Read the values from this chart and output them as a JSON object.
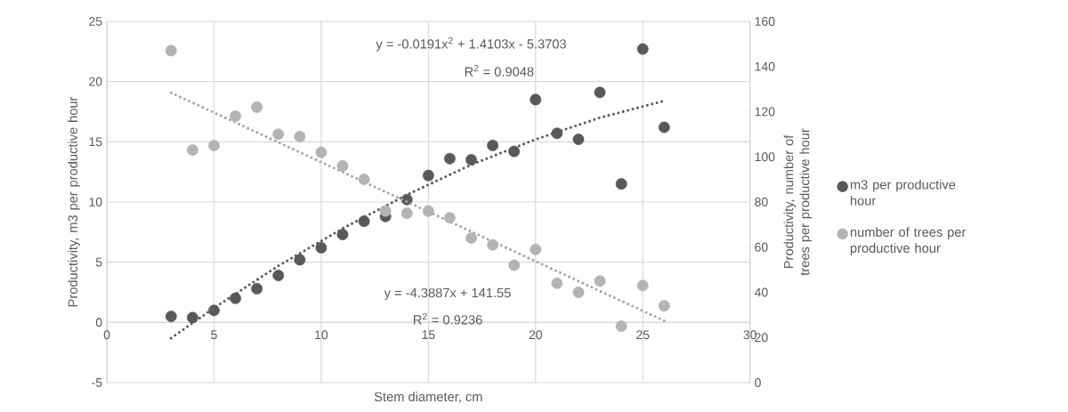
{
  "chart_data": {
    "type": "scatter",
    "xlabel": "Stem diameter, cm",
    "ylabel": "Productivity, m3 per productive hour",
    "y2label": "Productivity, number of trees per productive hour",
    "xlim": [
      0,
      30
    ],
    "xticks": [
      0,
      5,
      10,
      15,
      20,
      25,
      30
    ],
    "ylim": [
      -5,
      25
    ],
    "yticks": [
      -5,
      0,
      5,
      10,
      15,
      20,
      25
    ],
    "y2lim": [
      0,
      160
    ],
    "y2ticks": [
      0,
      20,
      40,
      60,
      80,
      100,
      120,
      140,
      160
    ],
    "grid": true,
    "legend": "right",
    "marker": "circle",
    "x": [
      3,
      4,
      5,
      6,
      7,
      8,
      9,
      10,
      11,
      12,
      13,
      14,
      15,
      16,
      17,
      18,
      19,
      20,
      21,
      22,
      23,
      24,
      25,
      26
    ],
    "series": [
      {
        "name": "m3 per productive hour",
        "color": "#595959",
        "values": [
          0.5,
          0.4,
          1.0,
          2.0,
          2.8,
          3.9,
          5.2,
          6.2,
          7.3,
          8.4,
          8.8,
          10.2,
          12.2,
          13.6,
          13.5,
          14.7,
          14.2,
          18.5,
          15.7,
          15.2,
          19.1,
          11.5,
          22.7,
          16.2
        ]
      },
      {
        "name": "number of trees per productive hour",
        "color": "#b4b4b4",
        "axis": "y2",
        "values": [
          147,
          103,
          105,
          118,
          122,
          110,
          109,
          102,
          96,
          90,
          76,
          75,
          76,
          73,
          64,
          61,
          52,
          59,
          44,
          40,
          45,
          25,
          43,
          34
        ]
      },
      {
        "type": "line",
        "color": "#595959",
        "line_style": "dotted",
        "marker": "none",
        "x": [
          3,
          5,
          8,
          11,
          14,
          17,
          20,
          23,
          26
        ],
        "values": [
          -1.3,
          1.2,
          4.7,
          7.8,
          10.6,
          13.1,
          15.2,
          17.0,
          18.4
        ]
      },
      {
        "type": "line",
        "color": "#a6a6a6",
        "line_style": "dotted",
        "marker": "none",
        "axis": "y2",
        "x": [
          3,
          26
        ],
        "values": [
          128.4,
          27.4
        ]
      }
    ],
    "annotations": [
      "y = -0.0191x$^{2}$ + 1.4103x - 5.3703",
      "R$^{2}$ = 0.9048",
      "y = -4.3887x + 141.55",
      "R$^{2}$ = 0.9236"
    ]
  }
}
